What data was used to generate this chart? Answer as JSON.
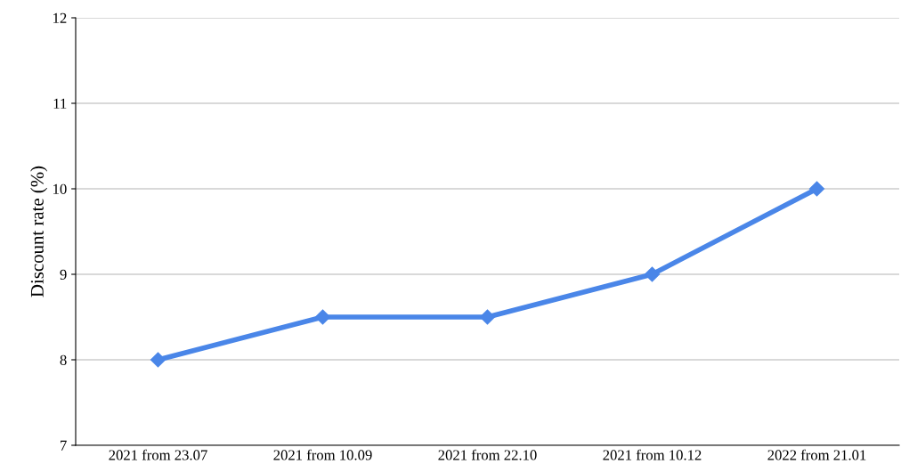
{
  "chart_data": {
    "type": "line",
    "ylabel": "Discount rate (%)",
    "categories": [
      "2021 from 23.07",
      "2021 from 10.09",
      "2021 from 22.10",
      "2021 from 10.12",
      "2022 from 21.01"
    ],
    "series": [
      {
        "color": "#4a86e8",
        "values": [
          8,
          8.5,
          8.5,
          9,
          10
        ]
      }
    ],
    "ylim": [
      7,
      12
    ],
    "yticks": [
      7,
      8,
      9,
      10,
      11,
      12
    ],
    "grid": "y",
    "legend": false,
    "marker": "diamond",
    "line_style": "solid"
  }
}
